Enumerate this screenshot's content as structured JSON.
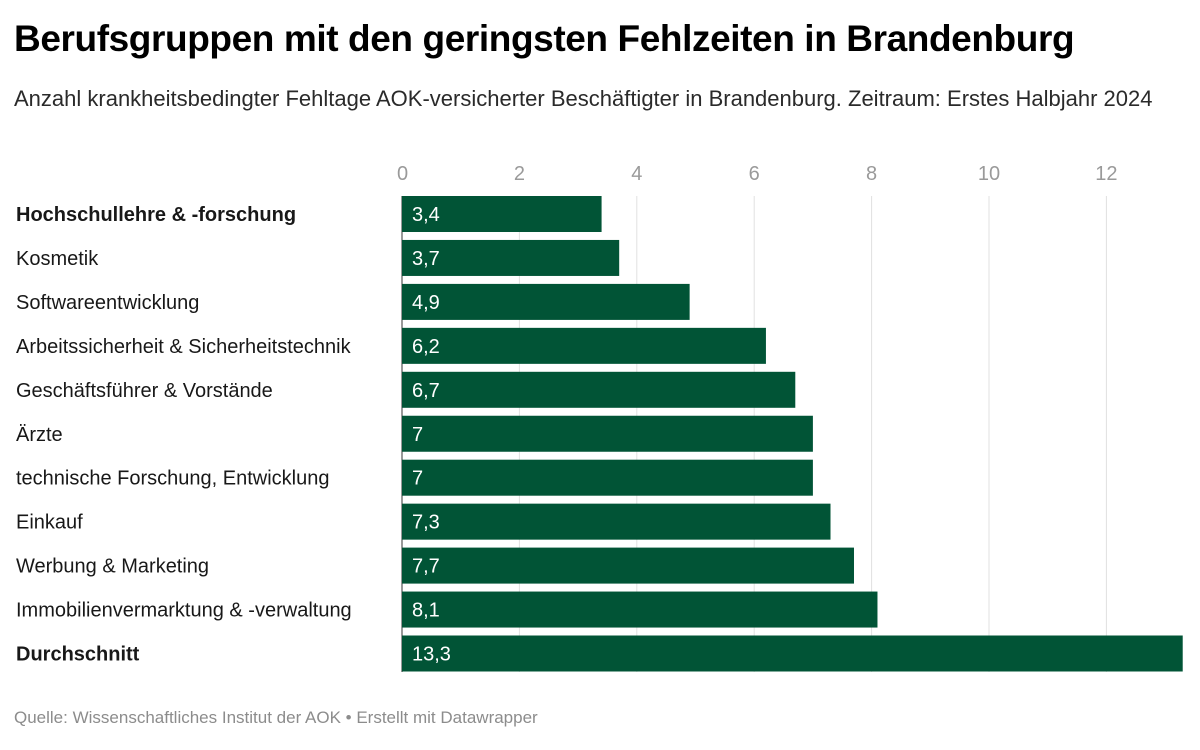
{
  "header": {
    "title": "Berufsgruppen mit den geringsten Fehlzeiten in Brandenburg",
    "subtitle": "Anzahl krankheitsbedingter Fehltage AOK-versicherter Beschäftigter in Brandenburg. Zeitraum: Erstes Halbjahr 2024"
  },
  "footer": {
    "source": "Quelle: Wissenschaftliches Institut der AOK • Erstellt mit Datawrapper"
  },
  "chart_data": {
    "type": "bar",
    "orientation": "horizontal",
    "title": "Berufsgruppen mit den geringsten Fehlzeiten in Brandenburg",
    "subtitle": "Anzahl krankheitsbedingter Fehltage AOK-versicherter Beschäftigter in Brandenburg. Zeitraum: Erstes Halbjahr 2024",
    "xlabel": "",
    "ylabel": "",
    "xlim": [
      0,
      13.3
    ],
    "xticks": [
      0,
      2,
      4,
      6,
      8,
      10,
      12
    ],
    "grid": true,
    "bar_color": "#015436",
    "categories": [
      "Hochschullehre & -forschung",
      "Kosmetik",
      "Softwareentwicklung",
      "Arbeitssicherheit & Sicherheitstechnik",
      "Geschäftsführer & Vorstände",
      "Ärzte",
      "technische Forschung, Entwicklung",
      "Einkauf",
      "Werbung & Marketing",
      "Immobilienvermarktung & -verwaltung",
      "Durchschnitt"
    ],
    "bold_categories": [
      "Hochschullehre & -forschung",
      "Durchschnitt"
    ],
    "values": [
      3.4,
      3.7,
      4.9,
      6.2,
      6.7,
      7,
      7,
      7.3,
      7.7,
      8.1,
      13.3
    ],
    "value_labels": [
      "3,4",
      "3,7",
      "4,9",
      "6,2",
      "6,7",
      "7",
      "7",
      "7,3",
      "7,7",
      "8,1",
      "13,3"
    ],
    "source": "Quelle: Wissenschaftliches Institut der AOK • Erstellt mit Datawrapper"
  }
}
